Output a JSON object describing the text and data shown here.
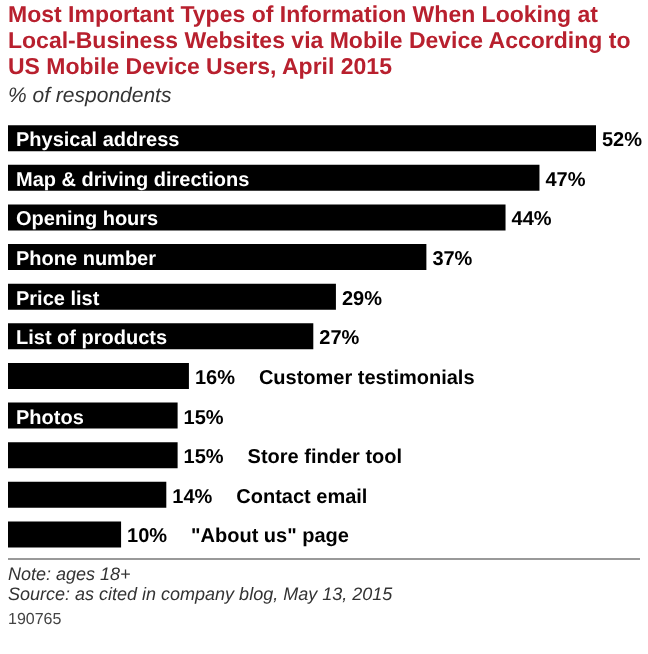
{
  "chart_data": {
    "type": "bar",
    "orientation": "horizontal",
    "title": "Most Important Types of Information When Looking at Local-Business Websites via Mobile Device According to US Mobile Device Users, April 2015",
    "subtitle": "% of respondents",
    "categories": [
      "Physical address",
      "Map & driving directions",
      "Opening hours",
      "Phone number",
      "Price list",
      "List of products",
      "Customer testimonials",
      "Photos",
      "Store finder tool",
      "Contact email",
      "\"About us\" page"
    ],
    "values": [
      52,
      47,
      44,
      37,
      29,
      27,
      16,
      15,
      15,
      14,
      10
    ],
    "value_labels": [
      "52%",
      "47%",
      "44%",
      "37%",
      "29%",
      "27%",
      "16%",
      "15%",
      "15%",
      "14%",
      "10%"
    ],
    "color": "#000000",
    "annotations": [
      "Note: ages 18+",
      "Source: as cited in company blog, May 13, 2015",
      "190765"
    ]
  }
}
